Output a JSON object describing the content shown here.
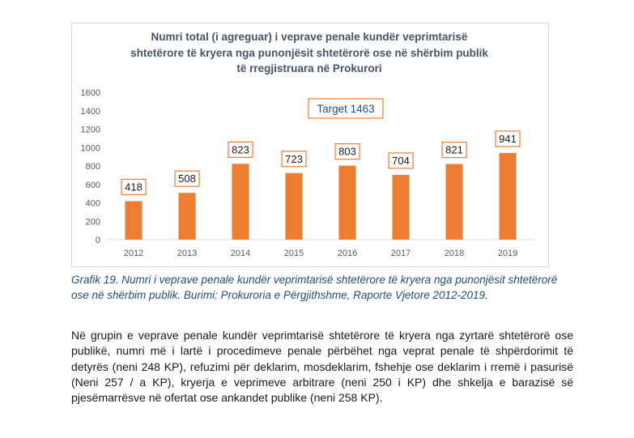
{
  "chart_data": {
    "type": "bar",
    "title_lines": [
      "Numri total (i agreguar) i veprave penale kundër veprimtarisë",
      "shtetërore të kryera nga punonjësit shtetërorë ose në shërbim publik",
      "të rregjistruara në Prokurori"
    ],
    "categories": [
      "2012",
      "2013",
      "2014",
      "2015",
      "2016",
      "2017",
      "2018",
      "2019"
    ],
    "values": [
      418,
      508,
      823,
      723,
      803,
      704,
      821,
      941
    ],
    "ylim": [
      0,
      1600
    ],
    "yticks": [
      0,
      200,
      400,
      600,
      800,
      1000,
      1200,
      1400,
      1600
    ],
    "annotation": "Target 1463",
    "bar_color": "#ed7d31",
    "label_border_color": "#ed7d31",
    "grid": false,
    "legend": "none"
  },
  "caption_lines": [
    "Grafik 19. Numri i veprave penale kundër veprimtarisë shtetërore të kryera nga punonjësit shtetërorë",
    "ose në shërbim publik. Burimi: Prokuroria e Përgjithshme, Raporte Vjetore 2012-2019."
  ],
  "body_paragraph": "Në grupin e veprave penale kundër veprimtarisë shtetërore të kryera nga zyrtarë shtetërorë ose publikë, numri më i lartë i procedimeve penale përbëhet nga veprat penale të shpërdorimit të detyrës (neni 248 KP), refuzimi për deklarim, mosdeklarim, fshehje ose deklarim i rremë i pasurisë (Neni 257 / a KP), kryerja e veprimeve arbitrare (neni 250 i KP) dhe shkelja e barazisë së pjesëmarrësve në ofertat ose ankandet publike (neni 258 KP)."
}
